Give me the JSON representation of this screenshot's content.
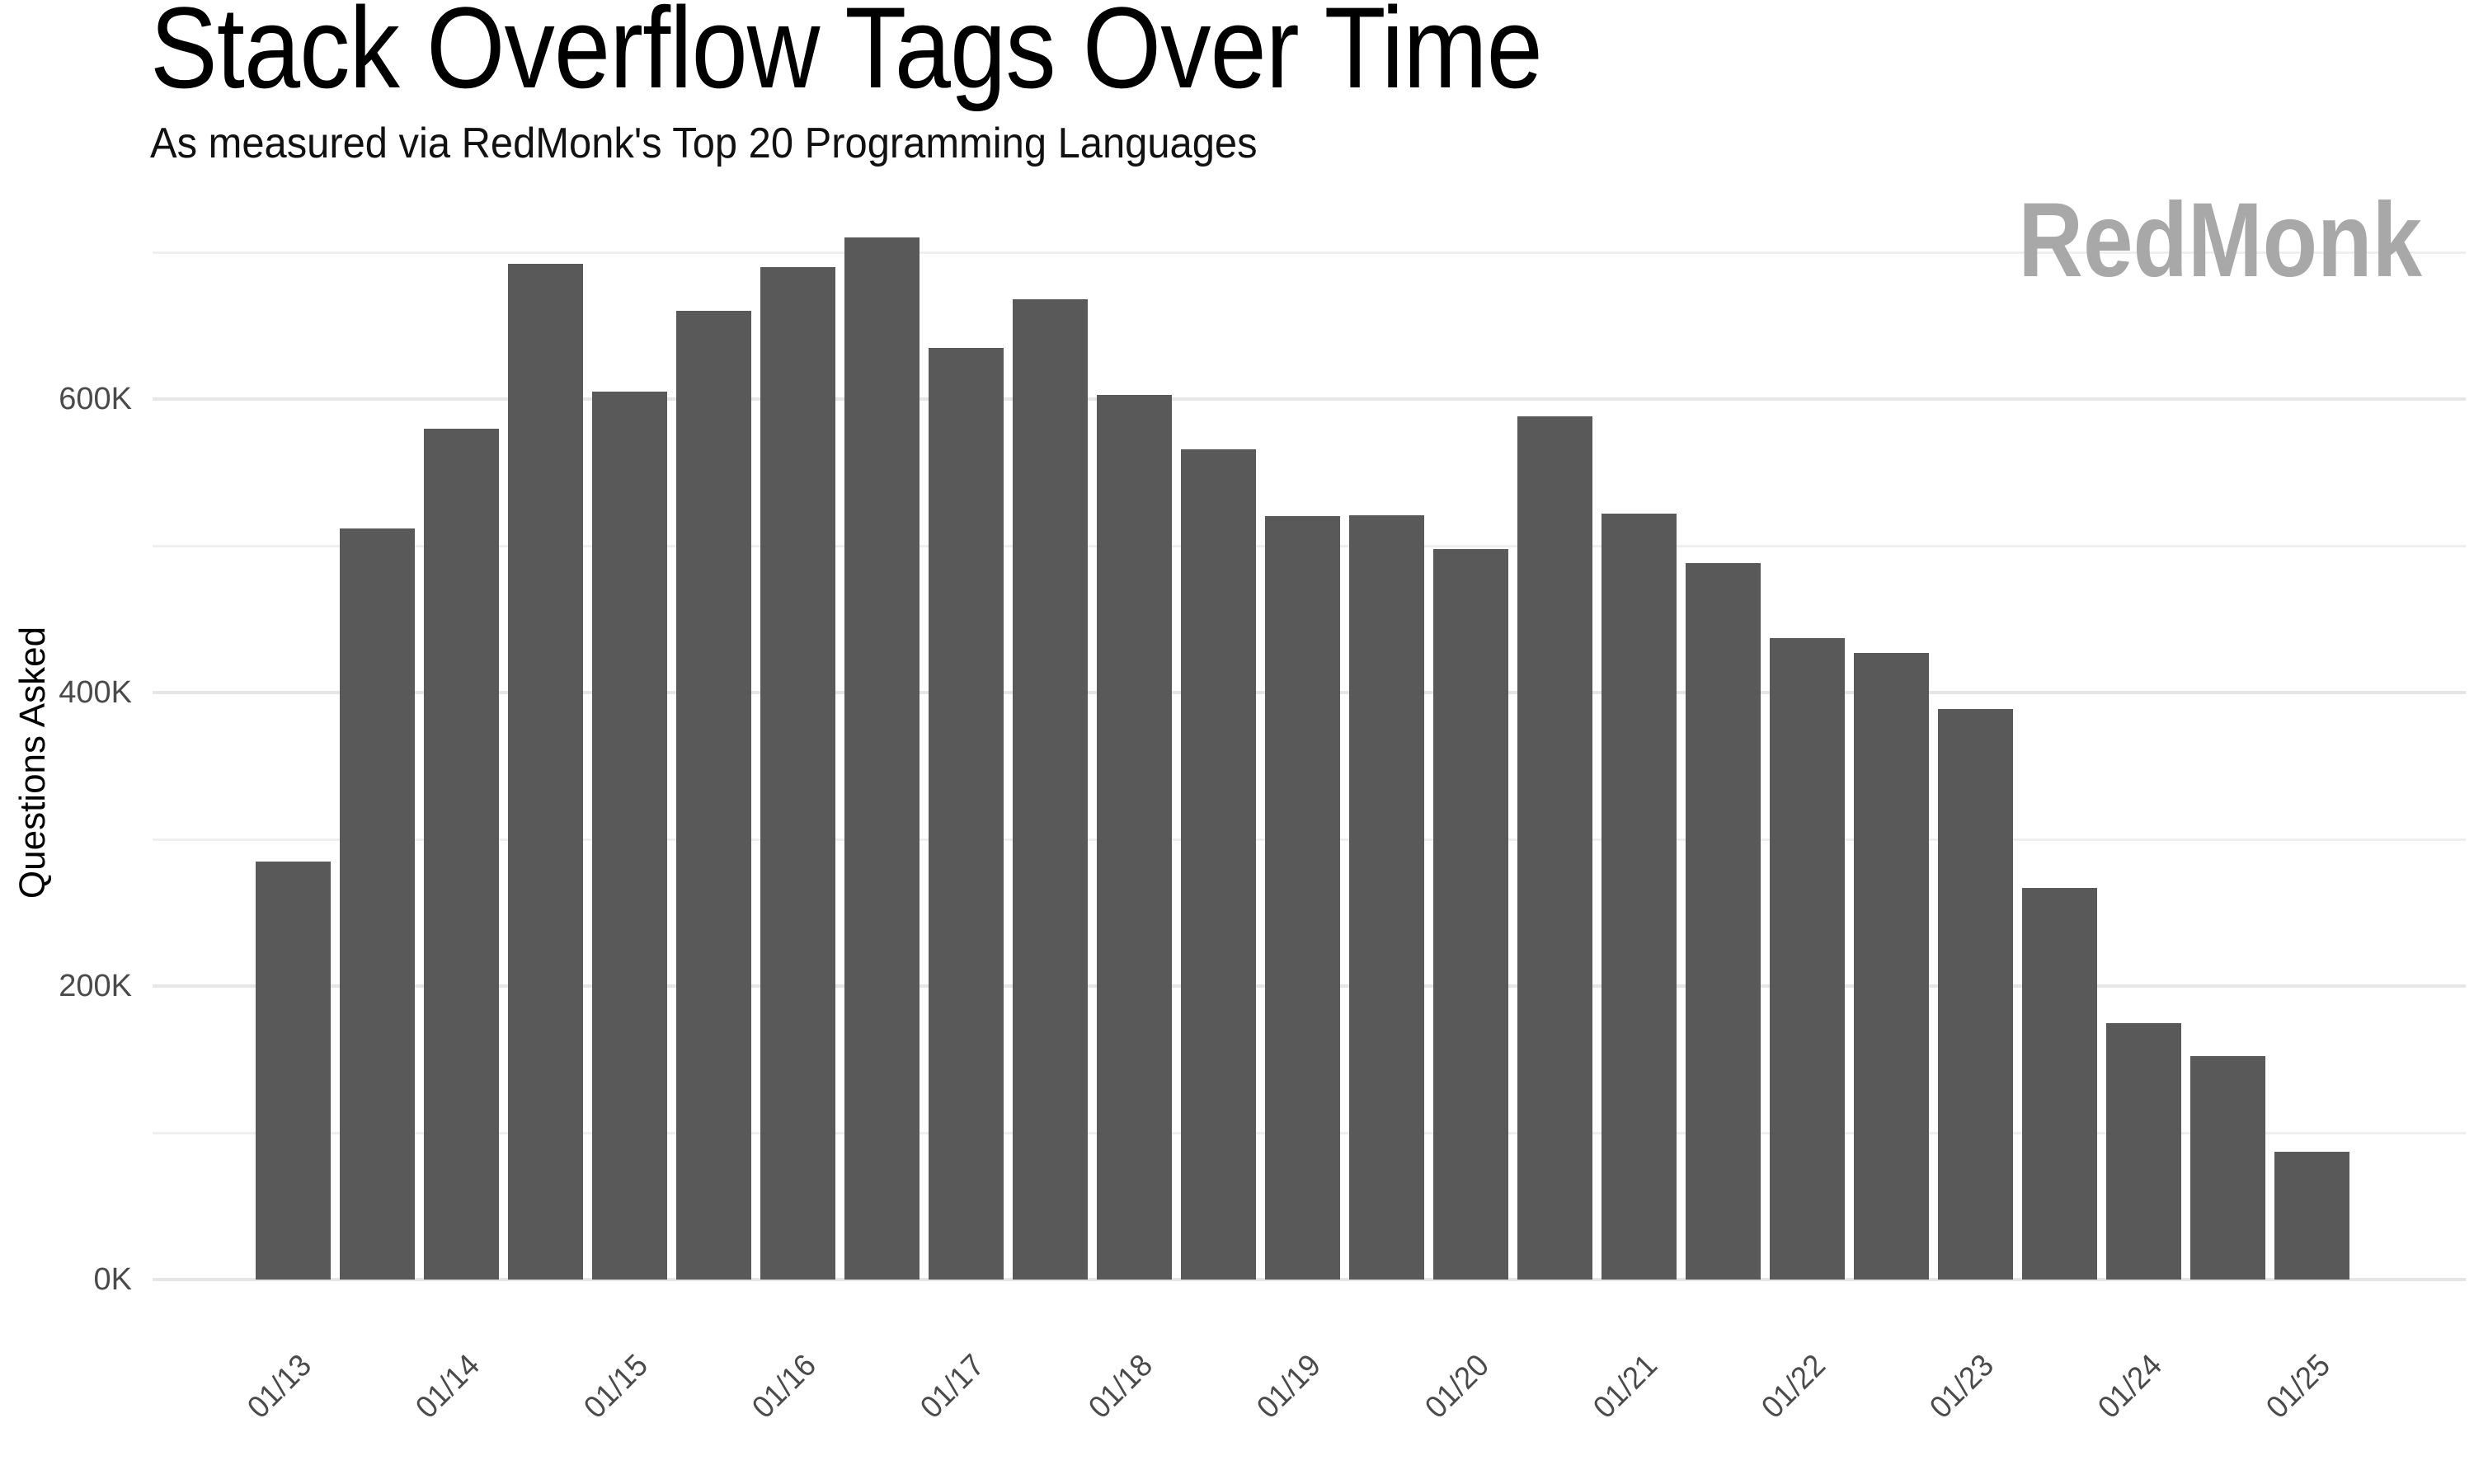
{
  "chart_data": {
    "type": "bar",
    "title": "Stack Overflow Tags Over Time",
    "subtitle": "As measured via RedMonk's Top 20 Programming Languages",
    "watermark": "RedMonk",
    "ylabel": "Questions Asked",
    "xlabel": "",
    "unit": "thousands of questions asked",
    "x_tick_labels": [
      "01/13",
      "01/14",
      "01/15",
      "01/16",
      "01/17",
      "01/18",
      "01/19",
      "01/20",
      "01/21",
      "01/22",
      "01/23",
      "01/24",
      "01/25"
    ],
    "x_tick_bar_indices": [
      0,
      2,
      4,
      6,
      8,
      10,
      12,
      14,
      16,
      18,
      20,
      22,
      24
    ],
    "values_thousands": [
      285,
      512,
      580,
      692,
      605,
      660,
      690,
      710,
      635,
      668,
      603,
      566,
      520,
      521,
      498,
      588,
      522,
      488,
      437,
      427,
      389,
      267,
      175,
      152,
      87
    ],
    "y_ticks": [
      {
        "label": "0K",
        "value": 0
      },
      {
        "label": "200K",
        "value": 200
      },
      {
        "label": "400K",
        "value": 400
      },
      {
        "label": "600K",
        "value": 600
      }
    ],
    "y_minor_values": [
      100,
      300,
      500,
      700
    ],
    "ylim": [
      0,
      730
    ],
    "bars_total": 25,
    "legend": "none",
    "grid": "horizontal major and minor lines",
    "colors": {
      "bar": "#595959",
      "grid_major": "#e6e6e6",
      "grid_minor": "#efefef",
      "axis_text": "#4a4a4a",
      "title_text": "#000000",
      "watermark_text": "#a8a8a8",
      "background": "#ffffff"
    }
  }
}
